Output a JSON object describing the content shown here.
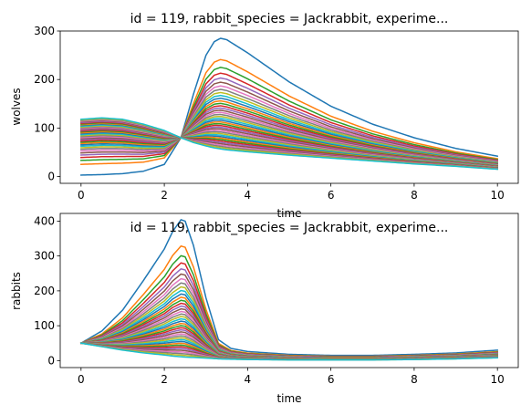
{
  "chart_data": [
    {
      "type": "line",
      "title": "id = 119, rabbit_species = Jackrabbit, experime...",
      "xlabel": "time",
      "ylabel": "wolves",
      "xlim": [
        -0.5,
        10.5
      ],
      "ylim": [
        -14,
        300
      ],
      "xticks": [
        0,
        2,
        4,
        6,
        8,
        10
      ],
      "yticks": [
        0,
        100,
        200,
        300
      ],
      "grid": false,
      "colors": [
        "#1f77b4",
        "#ff7f0e",
        "#2ca02c",
        "#d62728",
        "#9467bd",
        "#8c564b",
        "#e377c2",
        "#7f7f7f",
        "#bcbd22",
        "#17becf"
      ],
      "series_count": 40,
      "crossing_point": {
        "x": 2.4,
        "y": 80
      },
      "x": [
        0,
        0.5,
        1,
        1.5,
        2,
        2.4,
        2.7,
        3,
        3.2,
        3.35,
        3.5,
        4,
        5,
        6,
        7,
        8,
        9,
        10
      ],
      "series": [
        {
          "values": [
            3,
            4,
            6,
            11,
            25,
            80,
            170,
            250,
            278,
            285,
            282,
            255,
            195,
            145,
            108,
            80,
            58,
            42
          ]
        },
        {
          "values": [
            118,
            121,
            118,
            108,
            95,
            80,
            70,
            63,
            59,
            57,
            55,
            51,
            44,
            38,
            32,
            26,
            21,
            15
          ]
        }
      ]
    },
    {
      "type": "line",
      "title": "id = 119, rabbit_species = Jackrabbit, experime...",
      "xlabel": "time",
      "ylabel": "rabbits",
      "xlim": [
        -0.5,
        10.5
      ],
      "ylim": [
        -20,
        422
      ],
      "xticks": [
        0,
        2,
        4,
        6,
        8,
        10
      ],
      "yticks": [
        0,
        100,
        200,
        300,
        400
      ],
      "grid": false,
      "colors": [
        "#1f77b4",
        "#ff7f0e",
        "#2ca02c",
        "#d62728",
        "#9467bd",
        "#8c564b",
        "#e377c2",
        "#7f7f7f",
        "#bcbd22",
        "#17becf"
      ],
      "series_count": 40,
      "x": [
        0,
        0.5,
        1,
        1.5,
        2,
        2.2,
        2.4,
        2.5,
        2.7,
        3,
        3.3,
        3.6,
        4,
        5,
        6,
        7,
        8,
        9,
        10
      ],
      "series": [
        {
          "values": [
            50,
            85,
            145,
            230,
            320,
            370,
            404,
            400,
            330,
            180,
            60,
            35,
            26,
            18,
            15,
            15,
            18,
            22,
            30
          ]
        },
        {
          "values": [
            50,
            40,
            30,
            22,
            16,
            13,
            11,
            10,
            9,
            7,
            5,
            4,
            3,
            2,
            2,
            2,
            3,
            5,
            8
          ]
        }
      ]
    }
  ]
}
